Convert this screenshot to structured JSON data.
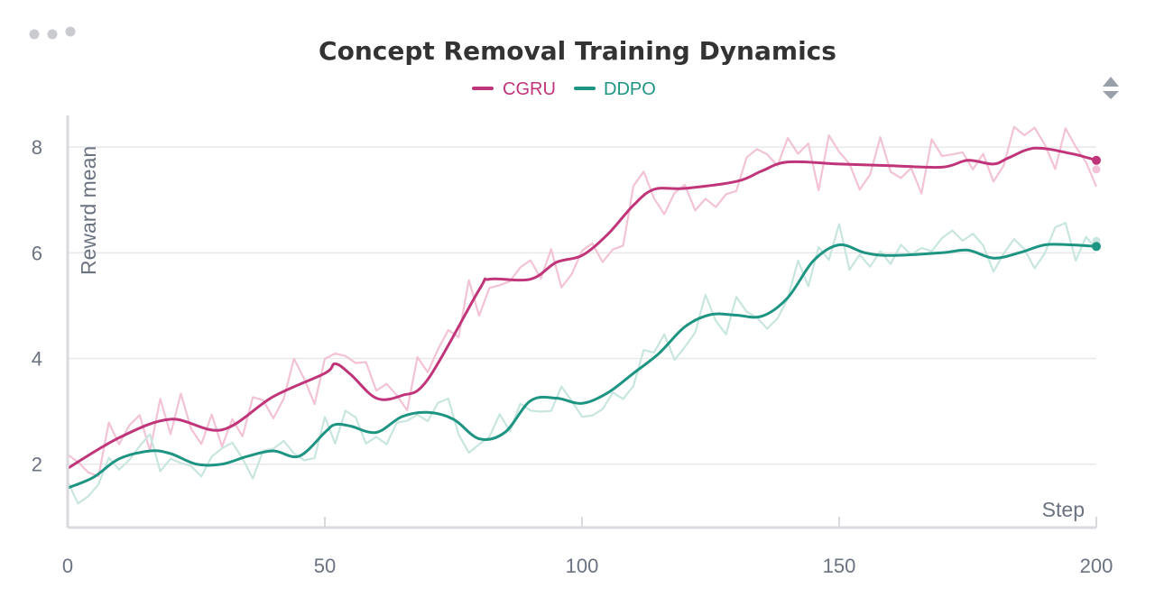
{
  "panel": {
    "menu_icon": "more-horizontal-icon",
    "sort_icon": "sort-up-down-icon"
  },
  "chart_data": {
    "type": "line",
    "title": "Concept Removal Training Dynamics",
    "xlabel": "Step",
    "ylabel": "Reward mean",
    "xlim": [
      0,
      200
    ],
    "ylim": [
      0.8,
      8.6
    ],
    "xticks": [
      0,
      50,
      100,
      150,
      200
    ],
    "yticks": [
      2,
      4,
      6,
      8
    ],
    "grid": true,
    "legend": "top-center",
    "series": [
      {
        "name": "CGRU",
        "color": "#c0357a",
        "raw_color": "#f2c3d6",
        "x": [
          0,
          10,
          20,
          30,
          40,
          50,
          52,
          55,
          60,
          65,
          70,
          80,
          82,
          90,
          95,
          100,
          105,
          110,
          114,
          120,
          130,
          135,
          140,
          150,
          160,
          170,
          175,
          180,
          183,
          188,
          195,
          200
        ],
        "y": [
          1.92,
          2.5,
          2.85,
          2.65,
          3.28,
          3.72,
          3.9,
          3.7,
          3.25,
          3.3,
          3.6,
          5.3,
          5.5,
          5.5,
          5.82,
          5.95,
          6.35,
          6.9,
          7.2,
          7.22,
          7.35,
          7.55,
          7.72,
          7.68,
          7.65,
          7.62,
          7.75,
          7.68,
          7.8,
          7.98,
          7.88,
          7.75
        ]
      },
      {
        "name": "DDPO",
        "color": "#1e9483",
        "raw_color": "#c8e6df",
        "x": [
          0,
          5,
          10,
          16,
          20,
          25,
          30,
          35,
          40,
          45,
          50,
          52,
          55,
          60,
          65,
          70,
          75,
          80,
          85,
          90,
          95,
          100,
          105,
          110,
          115,
          120,
          125,
          130,
          135,
          140,
          145,
          150,
          155,
          160,
          170,
          175,
          180,
          185,
          190,
          195,
          200
        ],
        "y": [
          1.55,
          1.75,
          2.1,
          2.25,
          2.2,
          2.0,
          2.0,
          2.15,
          2.25,
          2.15,
          2.6,
          2.75,
          2.72,
          2.6,
          2.9,
          2.98,
          2.85,
          2.48,
          2.6,
          3.2,
          3.25,
          3.15,
          3.35,
          3.72,
          4.1,
          4.6,
          4.83,
          4.82,
          4.8,
          5.15,
          5.85,
          6.15,
          6.0,
          5.95,
          6.0,
          6.05,
          5.9,
          6.0,
          6.15,
          6.15,
          6.12
        ]
      }
    ]
  }
}
